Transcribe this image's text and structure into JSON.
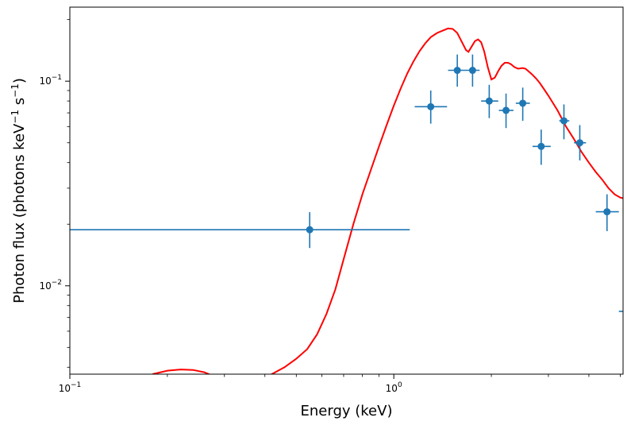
{
  "chart_data": {
    "type": "scatter",
    "title": "",
    "xlabel": "Energy (keV)",
    "ylabel": "Photon flux (photons keV",
    "ylabel_sup1": "−1",
    "ylabel_mid": " s",
    "ylabel_sup2": "−1",
    "ylabel_end": ")",
    "xscale": "log",
    "yscale": "log",
    "xlim": [
      0.1,
      5.1
    ],
    "ylim": [
      0.0037,
      0.23
    ],
    "grid": false,
    "x_ticks": [
      {
        "value": 0.1,
        "base": "10",
        "exp": "−1"
      },
      {
        "value": 1,
        "base": "10",
        "exp": "0"
      }
    ],
    "y_ticks": [
      {
        "value": 0.01,
        "base": "10",
        "exp": "−2"
      },
      {
        "value": 0.1,
        "base": "10",
        "exp": "−1"
      }
    ],
    "series": [
      {
        "kind": "errorbar",
        "color": "#1f77b4",
        "points": [
          {
            "x": 0.55,
            "xlo": 0.1,
            "xhi": 1.12,
            "y": 0.0188,
            "ylo": 0.0153,
            "yhi": 0.0229
          },
          {
            "x": 1.3,
            "xlo": 1.16,
            "xhi": 1.46,
            "y": 0.075,
            "ylo": 0.062,
            "yhi": 0.09
          },
          {
            "x": 1.57,
            "xlo": 1.47,
            "xhi": 1.66,
            "y": 0.113,
            "ylo": 0.094,
            "yhi": 0.135
          },
          {
            "x": 1.75,
            "xlo": 1.66,
            "xhi": 1.84,
            "y": 0.113,
            "ylo": 0.094,
            "yhi": 0.135
          },
          {
            "x": 1.97,
            "xlo": 1.86,
            "xhi": 2.1,
            "y": 0.08,
            "ylo": 0.066,
            "yhi": 0.096
          },
          {
            "x": 2.22,
            "xlo": 2.11,
            "xhi": 2.34,
            "y": 0.072,
            "ylo": 0.059,
            "yhi": 0.087
          },
          {
            "x": 2.5,
            "xlo": 2.38,
            "xhi": 2.63,
            "y": 0.078,
            "ylo": 0.064,
            "yhi": 0.093
          },
          {
            "x": 2.85,
            "xlo": 2.68,
            "xhi": 3.05,
            "y": 0.048,
            "ylo": 0.039,
            "yhi": 0.058
          },
          {
            "x": 3.35,
            "xlo": 3.24,
            "xhi": 3.48,
            "y": 0.064,
            "ylo": 0.052,
            "yhi": 0.077
          },
          {
            "x": 3.75,
            "xlo": 3.6,
            "xhi": 3.92,
            "y": 0.05,
            "ylo": 0.041,
            "yhi": 0.061
          },
          {
            "x": 4.55,
            "xlo": 4.2,
            "xhi": 4.95,
            "y": 0.023,
            "ylo": 0.0185,
            "yhi": 0.028
          },
          {
            "x": 5.1,
            "xlo": 4.95,
            "xhi": 5.1,
            "y": 0.0075
          }
        ]
      },
      {
        "kind": "line",
        "color": "#ff0000",
        "x": [
          0.18,
          0.2,
          0.22,
          0.24,
          0.26,
          0.28,
          0.3,
          0.32,
          0.35,
          0.38,
          0.42,
          0.46,
          0.5,
          0.54,
          0.58,
          0.62,
          0.66,
          0.7,
          0.75,
          0.8,
          0.85,
          0.9,
          0.95,
          1.0,
          1.05,
          1.1,
          1.15,
          1.2,
          1.25,
          1.3,
          1.36,
          1.42,
          1.47,
          1.52,
          1.57,
          1.62,
          1.67,
          1.7,
          1.74,
          1.78,
          1.82,
          1.86,
          1.9,
          1.95,
          2.0,
          2.05,
          2.1,
          2.15,
          2.2,
          2.25,
          2.3,
          2.36,
          2.42,
          2.5,
          2.55,
          2.6,
          2.67,
          2.75,
          2.82,
          2.9,
          3.0,
          3.2,
          3.4,
          3.6,
          3.8,
          4.0,
          4.2,
          4.4,
          4.6,
          4.8,
          5.0,
          5.1
        ],
        "y": [
          0.0037,
          0.00385,
          0.0039,
          0.00388,
          0.00378,
          0.0036,
          0.0034,
          0.00322,
          0.0032,
          0.0034,
          0.0037,
          0.004,
          0.0044,
          0.0049,
          0.0058,
          0.0073,
          0.0096,
          0.0135,
          0.02,
          0.028,
          0.037,
          0.048,
          0.061,
          0.076,
          0.092,
          0.109,
          0.125,
          0.14,
          0.153,
          0.164,
          0.172,
          0.177,
          0.181,
          0.18,
          0.172,
          0.156,
          0.142,
          0.139,
          0.148,
          0.157,
          0.16,
          0.155,
          0.14,
          0.117,
          0.102,
          0.104,
          0.112,
          0.119,
          0.123,
          0.123,
          0.121,
          0.117,
          0.115,
          0.116,
          0.115,
          0.112,
          0.108,
          0.103,
          0.098,
          0.092,
          0.085,
          0.072,
          0.06,
          0.052,
          0.045,
          0.04,
          0.036,
          0.033,
          0.03,
          0.028,
          0.027,
          0.0268
        ]
      }
    ]
  }
}
